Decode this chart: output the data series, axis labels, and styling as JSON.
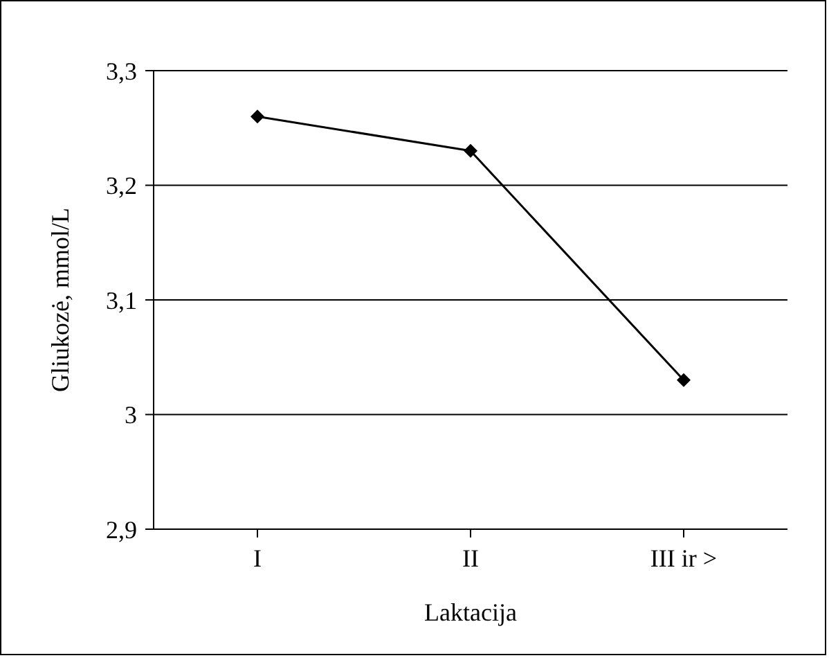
{
  "chart_data": {
    "type": "line",
    "xlabel": "Laktacija",
    "ylabel": "Gliukozė, mmol/L",
    "categories": [
      "I",
      "II",
      "III ir >"
    ],
    "series": [
      {
        "color": "#000000",
        "values": [
          3.26,
          3.23,
          3.03
        ]
      }
    ],
    "ylim": [
      2.9,
      3.3
    ],
    "yticks": [
      {
        "value": 2.9,
        "label": "2,9"
      },
      {
        "value": 3.0,
        "label": "3"
      },
      {
        "value": 3.1,
        "label": "3,1"
      },
      {
        "value": 3.2,
        "label": "3,2"
      },
      {
        "value": 3.3,
        "label": "3,3"
      }
    ],
    "grid": "y",
    "marker": "diamond",
    "line_style": "solid"
  }
}
